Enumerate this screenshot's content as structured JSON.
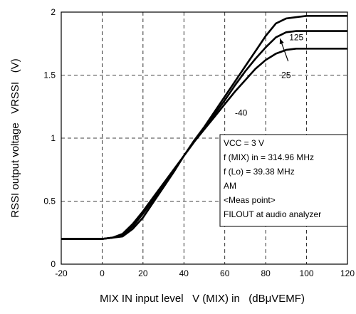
{
  "chart_data": {
    "type": "line",
    "xlabel": "MIX IN input level   V (MIX) in   (dBμVEMF)",
    "ylabel": "RSSI output voltage   VRSSI   (V)",
    "xlim": [
      -20,
      120
    ],
    "ylim": [
      0,
      2
    ],
    "xticks": [
      "-20",
      "0",
      "20",
      "40",
      "60",
      "80",
      "100",
      "120"
    ],
    "yticks": [
      "0",
      "0.5",
      "1",
      "1.5",
      "2"
    ],
    "grid": "dashed",
    "series": [
      {
        "name": "125",
        "x": [
          -20,
          0,
          5,
          10,
          15,
          20,
          25,
          30,
          35,
          40,
          45,
          50,
          55,
          60,
          65,
          70,
          75,
          80,
          85,
          90,
          95,
          100,
          110,
          120
        ],
        "y": [
          0.2,
          0.2,
          0.21,
          0.24,
          0.32,
          0.42,
          0.53,
          0.64,
          0.75,
          0.86,
          0.98,
          1.09,
          1.21,
          1.33,
          1.45,
          1.57,
          1.69,
          1.81,
          1.91,
          1.95,
          1.96,
          1.97,
          1.97,
          1.97
        ]
      },
      {
        "name": "25",
        "x": [
          -20,
          0,
          5,
          10,
          15,
          20,
          25,
          30,
          35,
          40,
          45,
          50,
          55,
          60,
          65,
          70,
          75,
          80,
          85,
          90,
          95,
          100,
          110,
          120
        ],
        "y": [
          0.2,
          0.2,
          0.21,
          0.23,
          0.3,
          0.4,
          0.51,
          0.63,
          0.74,
          0.86,
          0.97,
          1.08,
          1.19,
          1.3,
          1.42,
          1.53,
          1.63,
          1.72,
          1.8,
          1.84,
          1.85,
          1.85,
          1.85,
          1.85
        ]
      },
      {
        "name": "-40",
        "x": [
          -20,
          0,
          5,
          10,
          15,
          20,
          25,
          30,
          35,
          40,
          45,
          50,
          55,
          60,
          65,
          70,
          75,
          80,
          85,
          90,
          95,
          100,
          110,
          120
        ],
        "y": [
          0.2,
          0.2,
          0.21,
          0.22,
          0.28,
          0.37,
          0.49,
          0.61,
          0.73,
          0.86,
          0.97,
          1.07,
          1.17,
          1.27,
          1.37,
          1.46,
          1.55,
          1.62,
          1.67,
          1.7,
          1.71,
          1.71,
          1.71,
          1.71
        ]
      }
    ],
    "curve_labels": [
      {
        "text": "125",
        "x": 95,
        "y": 1.8
      },
      {
        "text": "25",
        "x": 90,
        "y": 1.5
      },
      {
        "text": "-40",
        "x": 68,
        "y": 1.2
      }
    ],
    "arrow": {
      "from": [
        91,
        1.61
      ],
      "to": [
        87,
        1.79
      ]
    },
    "annotation_box": {
      "lines": [
        "VCC = 3 V",
        "f (MIX) in = 314.96 MHz",
        "f (Lo) = 39.38 MHz",
        "AM",
        "<Meas point>",
        "FILOUT at audio analyzer"
      ]
    }
  }
}
